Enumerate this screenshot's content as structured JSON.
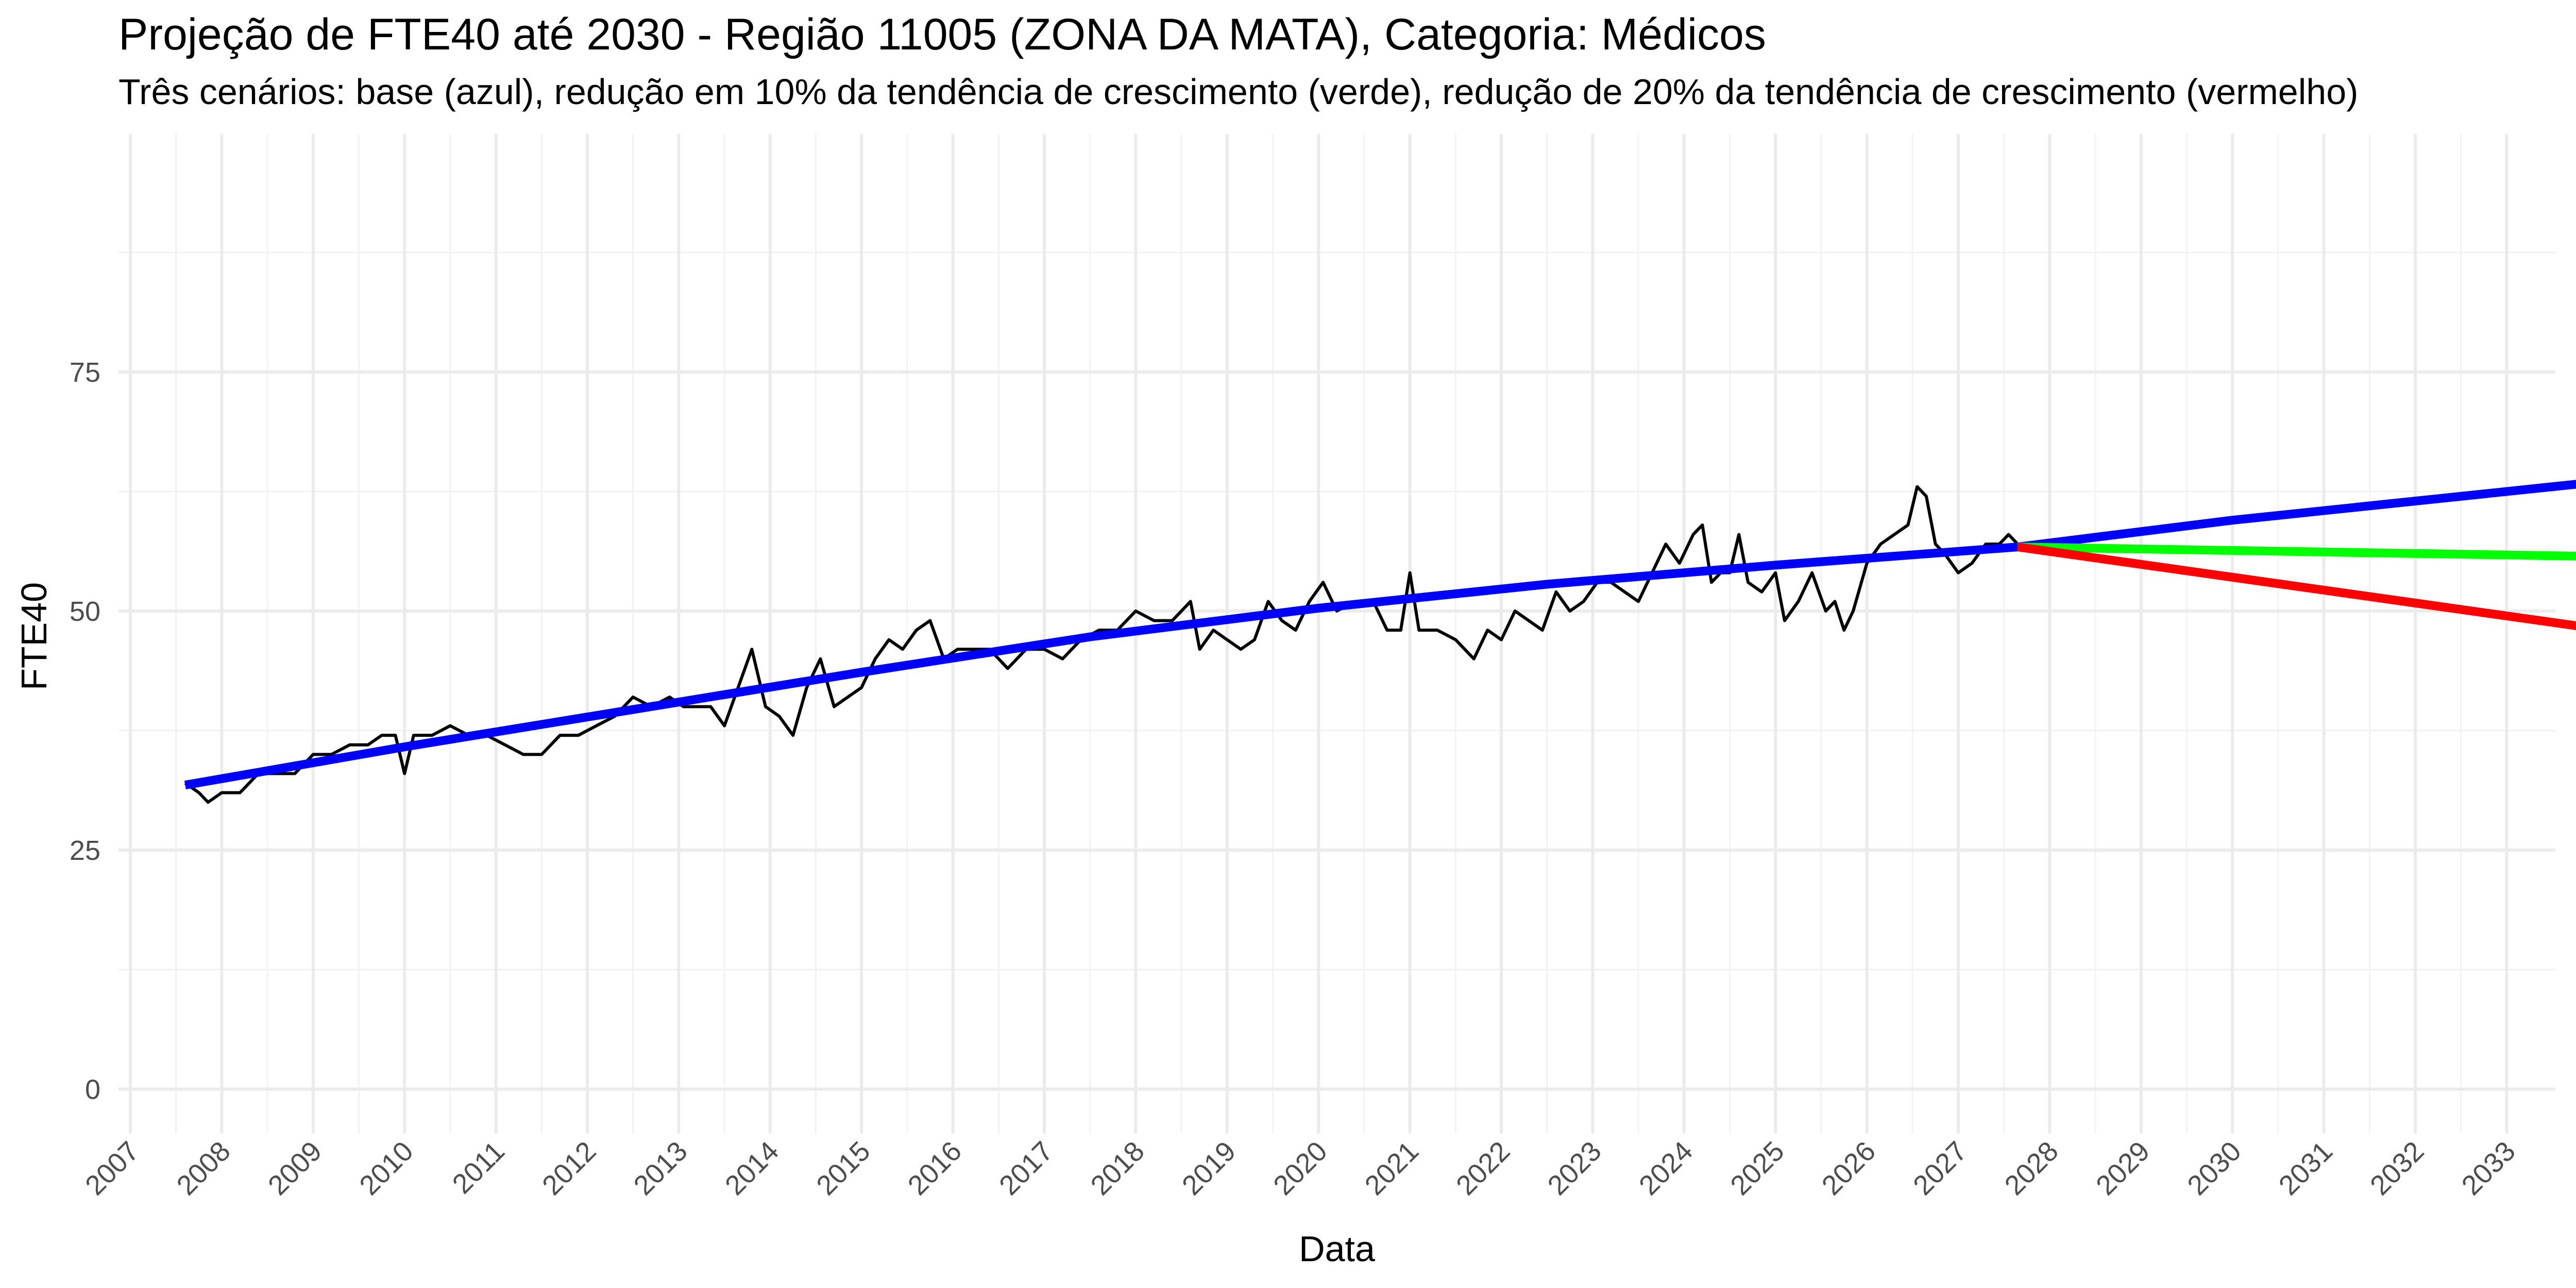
{
  "chart_data": {
    "type": "line",
    "title": "Projeção de FTE40 até 2030 - Região 11005 (ZONA DA MATA), Categoria: Médicos",
    "subtitle": "Três cenários: base (azul), redução em 10% da tendência de crescimento (verde), redução de 20% da tendência de crescimento (vermelho)",
    "xlabel": "Data",
    "ylabel": "FTE40",
    "xlim": [
      2006.8,
      2033.3
    ],
    "ylim": [
      -3,
      100
    ],
    "x_ticks": [
      "2007",
      "2008",
      "2009",
      "2010",
      "2011",
      "2012",
      "2013",
      "2014",
      "2015",
      "2016",
      "2017",
      "2018",
      "2019",
      "2020",
      "2021",
      "2022",
      "2023",
      "2024",
      "2025",
      "2026",
      "2027",
      "2028",
      "2029",
      "2030",
      "2031",
      "2032",
      "2033"
    ],
    "y_ticks": [
      0,
      25,
      50,
      75
    ],
    "grid": true,
    "legend": "none",
    "series": [
      {
        "color": "#000000",
        "line_width": 6,
        "points": [
          [
            2007.6,
            32
          ],
          [
            2007.75,
            31
          ],
          [
            2007.85,
            30
          ],
          [
            2008.0,
            31
          ],
          [
            2008.2,
            31
          ],
          [
            2008.4,
            33
          ],
          [
            2008.6,
            33
          ],
          [
            2008.8,
            33
          ],
          [
            2009.0,
            35
          ],
          [
            2009.2,
            35
          ],
          [
            2009.4,
            36
          ],
          [
            2009.6,
            36
          ],
          [
            2009.75,
            37
          ],
          [
            2009.9,
            37
          ],
          [
            2010.0,
            33
          ],
          [
            2010.1,
            37
          ],
          [
            2010.3,
            37
          ],
          [
            2010.5,
            38
          ],
          [
            2010.7,
            37
          ],
          [
            2010.9,
            37
          ],
          [
            2011.1,
            36
          ],
          [
            2011.3,
            35
          ],
          [
            2011.5,
            35
          ],
          [
            2011.7,
            37
          ],
          [
            2011.9,
            37
          ],
          [
            2012.1,
            38
          ],
          [
            2012.3,
            39
          ],
          [
            2012.5,
            41
          ],
          [
            2012.7,
            40
          ],
          [
            2012.9,
            41
          ],
          [
            2013.05,
            40
          ],
          [
            2013.2,
            40
          ],
          [
            2013.35,
            40
          ],
          [
            2013.5,
            38
          ],
          [
            2013.65,
            42
          ],
          [
            2013.8,
            46
          ],
          [
            2013.95,
            40
          ],
          [
            2014.1,
            39
          ],
          [
            2014.25,
            37
          ],
          [
            2014.4,
            42
          ],
          [
            2014.55,
            45
          ],
          [
            2014.7,
            40
          ],
          [
            2014.85,
            41
          ],
          [
            2015.0,
            42
          ],
          [
            2015.15,
            45
          ],
          [
            2015.3,
            47
          ],
          [
            2015.45,
            46
          ],
          [
            2015.6,
            48
          ],
          [
            2015.75,
            49
          ],
          [
            2015.9,
            45
          ],
          [
            2016.05,
            46
          ],
          [
            2016.2,
            46
          ],
          [
            2016.4,
            46
          ],
          [
            2016.6,
            44
          ],
          [
            2016.8,
            46
          ],
          [
            2017.0,
            46
          ],
          [
            2017.2,
            45
          ],
          [
            2017.4,
            47
          ],
          [
            2017.6,
            48
          ],
          [
            2017.8,
            48
          ],
          [
            2018.0,
            50
          ],
          [
            2018.2,
            49
          ],
          [
            2018.4,
            49
          ],
          [
            2018.6,
            51
          ],
          [
            2018.7,
            46
          ],
          [
            2018.85,
            48
          ],
          [
            2019.0,
            47
          ],
          [
            2019.15,
            46
          ],
          [
            2019.3,
            47
          ],
          [
            2019.45,
            51
          ],
          [
            2019.6,
            49
          ],
          [
            2019.75,
            48
          ],
          [
            2019.9,
            51
          ],
          [
            2020.05,
            53
          ],
          [
            2020.2,
            50
          ],
          [
            2020.4,
            51
          ],
          [
            2020.6,
            51
          ],
          [
            2020.75,
            48
          ],
          [
            2020.9,
            48
          ],
          [
            2021.0,
            54
          ],
          [
            2021.1,
            48
          ],
          [
            2021.3,
            48
          ],
          [
            2021.5,
            47
          ],
          [
            2021.7,
            45
          ],
          [
            2021.85,
            48
          ],
          [
            2022.0,
            47
          ],
          [
            2022.15,
            50
          ],
          [
            2022.3,
            49
          ],
          [
            2022.45,
            48
          ],
          [
            2022.6,
            52
          ],
          [
            2022.75,
            50
          ],
          [
            2022.9,
            51
          ],
          [
            2023.05,
            53
          ],
          [
            2023.2,
            53
          ],
          [
            2023.35,
            52
          ],
          [
            2023.5,
            51
          ],
          [
            2023.65,
            54
          ],
          [
            2023.8,
            57
          ],
          [
            2023.95,
            55
          ],
          [
            2024.1,
            58
          ],
          [
            2024.2,
            59
          ],
          [
            2024.3,
            53
          ],
          [
            2024.4,
            54
          ],
          [
            2024.5,
            54
          ],
          [
            2024.6,
            58
          ],
          [
            2024.7,
            53
          ],
          [
            2024.85,
            52
          ],
          [
            2025.0,
            54
          ],
          [
            2025.1,
            49
          ],
          [
            2025.25,
            51
          ],
          [
            2025.4,
            54
          ],
          [
            2025.55,
            50
          ],
          [
            2025.65,
            51
          ],
          [
            2025.75,
            48
          ],
          [
            2025.85,
            50
          ],
          [
            2026.0,
            55
          ],
          [
            2026.15,
            57
          ],
          [
            2026.3,
            58
          ],
          [
            2026.45,
            59
          ],
          [
            2026.55,
            63
          ],
          [
            2026.65,
            62
          ],
          [
            2026.75,
            57
          ],
          [
            2026.85,
            56
          ],
          [
            2027.0,
            54
          ],
          [
            2027.15,
            55
          ],
          [
            2027.3,
            57
          ],
          [
            2027.45,
            57
          ],
          [
            2027.55,
            58
          ],
          [
            2027.65,
            57
          ]
        ]
      },
      {
        "color": "#0000ff",
        "line_width": 17,
        "points": [
          [
            2007.6,
            31.8
          ],
          [
            2010.0,
            35.8
          ],
          [
            2012.5,
            39.7
          ],
          [
            2015.0,
            43.6
          ],
          [
            2017.5,
            47.3
          ],
          [
            2020.0,
            50.3
          ],
          [
            2022.5,
            52.8
          ],
          [
            2025.0,
            54.8
          ],
          [
            2027.65,
            56.7
          ],
          [
            2030.0,
            59.5
          ],
          [
            2032.5,
            62.0
          ],
          [
            2034.7,
            64.2
          ]
        ]
      },
      {
        "color": "#00ff00",
        "line_width": 17,
        "points": [
          [
            2027.65,
            56.7
          ],
          [
            2034.7,
            55.6
          ]
        ]
      },
      {
        "color": "#ff0000",
        "line_width": 17,
        "points": [
          [
            2027.65,
            56.7
          ],
          [
            2034.7,
            47.2
          ]
        ]
      }
    ]
  }
}
